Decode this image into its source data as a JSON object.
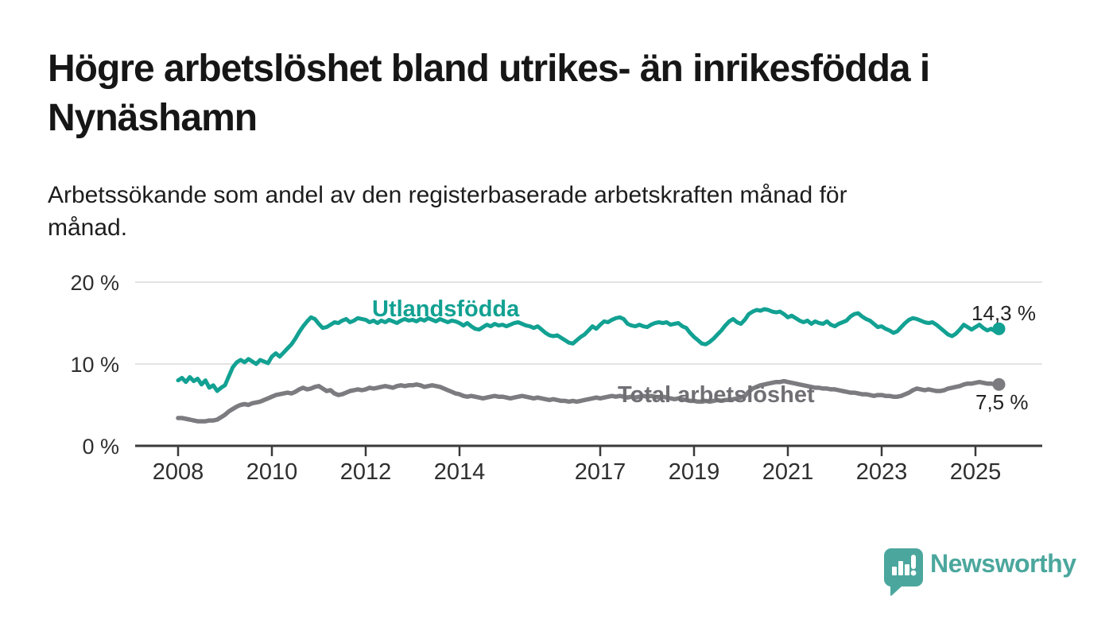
{
  "title": "Högre arbetslöshet bland utrikes- än inrikesfödda i\nNynäshamn",
  "subtitle": "Arbetssökande som andel av den registerbaserade arbetskraften månad för\nmånad.",
  "colors": {
    "accent_teal": "#12a192",
    "line_gray": "#7c7c80",
    "label_gray": "#6f6f74",
    "axis_dark": "#3a3a3a",
    "grid_light": "#e3e3e3",
    "tick_text": "#2f2f2f",
    "logo_teal": "#4ba79d"
  },
  "chart_data": {
    "type": "line",
    "title": "Högre arbetslöshet bland utrikes- än inrikesfödda i Nynäshamn",
    "subtitle": "Arbetssökande som andel av den registerbaserade arbetskraften månad för månad.",
    "x_unit": "month",
    "x_start": "2008-01",
    "x_end": "2025-07",
    "ylim": [
      0,
      21
    ],
    "grid": "horizontal",
    "y_ticks": [
      {
        "value": 0,
        "label": "0 %"
      },
      {
        "value": 10,
        "label": "10 %"
      },
      {
        "value": 20,
        "label": "20 %"
      }
    ],
    "x_ticks": [
      {
        "year": 2008,
        "label": "2008"
      },
      {
        "year": 2010,
        "label": "2010"
      },
      {
        "year": 2012,
        "label": "2012"
      },
      {
        "year": 2014,
        "label": "2014"
      },
      {
        "year": 2017,
        "label": "2017"
      },
      {
        "year": 2019,
        "label": "2019"
      },
      {
        "year": 2021,
        "label": "2021"
      },
      {
        "year": 2023,
        "label": "2023"
      },
      {
        "year": 2025,
        "label": "2025"
      }
    ],
    "series": [
      {
        "name": "Utlandsfödda",
        "color": "#12a192",
        "end_label": "14,3 %",
        "end_value": 14.3,
        "values": [
          8.0,
          8.3,
          7.8,
          8.4,
          7.9,
          8.2,
          7.5,
          8.0,
          7.1,
          7.4,
          6.7,
          7.1,
          7.4,
          8.5,
          9.6,
          10.2,
          10.5,
          10.2,
          10.6,
          10.3,
          10.0,
          10.5,
          10.3,
          10.1,
          10.9,
          11.3,
          10.9,
          11.4,
          11.9,
          12.4,
          13.1,
          13.9,
          14.6,
          15.2,
          15.7,
          15.5,
          14.9,
          14.4,
          14.5,
          14.8,
          15.1,
          15.0,
          15.3,
          15.5,
          15.1,
          15.3,
          15.6,
          15.5,
          15.4,
          15.1,
          15.3,
          15.0,
          15.3,
          15.1,
          15.4,
          15.2,
          15.0,
          15.3,
          15.5,
          15.3,
          15.4,
          15.2,
          15.5,
          15.3,
          15.6,
          15.4,
          15.2,
          15.5,
          15.3,
          15.1,
          15.3,
          15.2,
          15.0,
          14.7,
          15.0,
          14.6,
          14.3,
          14.2,
          14.5,
          14.8,
          14.6,
          14.9,
          14.7,
          14.8,
          14.6,
          14.8,
          15.0,
          15.1,
          14.9,
          14.7,
          14.6,
          14.4,
          14.6,
          14.2,
          13.8,
          13.5,
          13.4,
          13.5,
          13.2,
          12.9,
          12.6,
          12.5,
          12.9,
          13.3,
          13.6,
          14.1,
          14.6,
          14.3,
          14.8,
          15.2,
          15.1,
          15.4,
          15.6,
          15.7,
          15.5,
          14.9,
          14.7,
          14.6,
          14.8,
          14.6,
          14.5,
          14.8,
          15.0,
          15.1,
          15.0,
          15.1,
          14.8,
          14.9,
          15.0,
          14.6,
          14.4,
          13.8,
          13.3,
          12.9,
          12.5,
          12.4,
          12.7,
          13.1,
          13.6,
          14.1,
          14.7,
          15.2,
          15.5,
          15.1,
          14.9,
          15.4,
          16.1,
          16.4,
          16.6,
          16.5,
          16.7,
          16.6,
          16.4,
          16.3,
          16.4,
          16.1,
          15.7,
          15.9,
          15.6,
          15.3,
          15.1,
          15.3,
          14.9,
          15.2,
          15.0,
          14.9,
          15.2,
          14.8,
          14.6,
          14.9,
          15.1,
          15.3,
          15.8,
          16.1,
          16.2,
          15.8,
          15.5,
          15.3,
          14.9,
          14.5,
          14.6,
          14.3,
          14.1,
          13.8,
          14.0,
          14.5,
          15.0,
          15.4,
          15.6,
          15.5,
          15.3,
          15.1,
          15.0,
          15.1,
          14.8,
          14.4,
          14.0,
          13.6,
          13.4,
          13.7,
          14.2,
          14.8,
          14.5,
          14.2,
          14.5,
          14.8,
          14.4,
          14.1,
          14.3,
          14.0,
          14.3
        ]
      },
      {
        "name": "Total arbetslöshet",
        "color": "#7c7c80",
        "end_label": "7,5 %",
        "end_value": 7.5,
        "values": [
          3.4,
          3.4,
          3.3,
          3.2,
          3.1,
          3.0,
          3.0,
          3.0,
          3.1,
          3.1,
          3.2,
          3.5,
          3.8,
          4.2,
          4.5,
          4.8,
          5.0,
          5.1,
          5.0,
          5.2,
          5.3,
          5.4,
          5.6,
          5.8,
          6.0,
          6.2,
          6.3,
          6.4,
          6.5,
          6.4,
          6.6,
          6.9,
          7.1,
          6.9,
          7.0,
          7.2,
          7.3,
          7.0,
          6.7,
          6.8,
          6.4,
          6.2,
          6.3,
          6.5,
          6.7,
          6.8,
          6.9,
          6.8,
          6.9,
          7.1,
          7.0,
          7.1,
          7.2,
          7.3,
          7.2,
          7.1,
          7.3,
          7.4,
          7.3,
          7.4,
          7.4,
          7.5,
          7.4,
          7.2,
          7.3,
          7.4,
          7.3,
          7.2,
          7.0,
          6.8,
          6.6,
          6.4,
          6.3,
          6.1,
          6.0,
          6.1,
          6.0,
          5.9,
          5.8,
          5.9,
          6.0,
          6.1,
          6.0,
          6.0,
          5.9,
          5.8,
          5.9,
          6.0,
          6.1,
          6.0,
          5.9,
          5.8,
          5.9,
          5.8,
          5.7,
          5.6,
          5.7,
          5.6,
          5.5,
          5.5,
          5.4,
          5.5,
          5.4,
          5.5,
          5.6,
          5.7,
          5.8,
          5.9,
          5.8,
          5.9,
          6.0,
          6.1,
          6.0,
          6.1,
          6.0,
          5.9,
          6.0,
          5.9,
          6.0,
          6.1,
          6.0,
          6.1,
          6.0,
          5.9,
          6.0,
          5.9,
          5.8,
          5.7,
          5.8,
          5.7,
          5.6,
          5.5,
          5.5,
          5.4,
          5.4,
          5.5,
          5.4,
          5.5,
          5.6,
          5.5,
          5.6,
          5.6,
          5.7,
          5.8,
          5.9,
          6.1,
          6.6,
          7.0,
          7.2,
          7.4,
          7.5,
          7.6,
          7.7,
          7.8,
          7.8,
          7.9,
          7.8,
          7.7,
          7.6,
          7.5,
          7.4,
          7.3,
          7.2,
          7.1,
          7.1,
          7.0,
          7.0,
          6.9,
          6.9,
          6.8,
          6.7,
          6.6,
          6.5,
          6.5,
          6.4,
          6.3,
          6.3,
          6.2,
          6.1,
          6.2,
          6.2,
          6.1,
          6.1,
          6.0,
          6.0,
          6.1,
          6.3,
          6.5,
          6.8,
          7.0,
          6.9,
          6.8,
          6.9,
          6.8,
          6.7,
          6.7,
          6.8,
          7.0,
          7.1,
          7.2,
          7.3,
          7.5,
          7.6,
          7.6,
          7.7,
          7.8,
          7.7,
          7.6,
          7.6,
          7.5,
          7.5
        ]
      }
    ],
    "legend_position": "inline-labels"
  },
  "branding": {
    "logo_text": "Newsworthy",
    "logo_icon": "speech-bubble-bar-chart-icon"
  }
}
